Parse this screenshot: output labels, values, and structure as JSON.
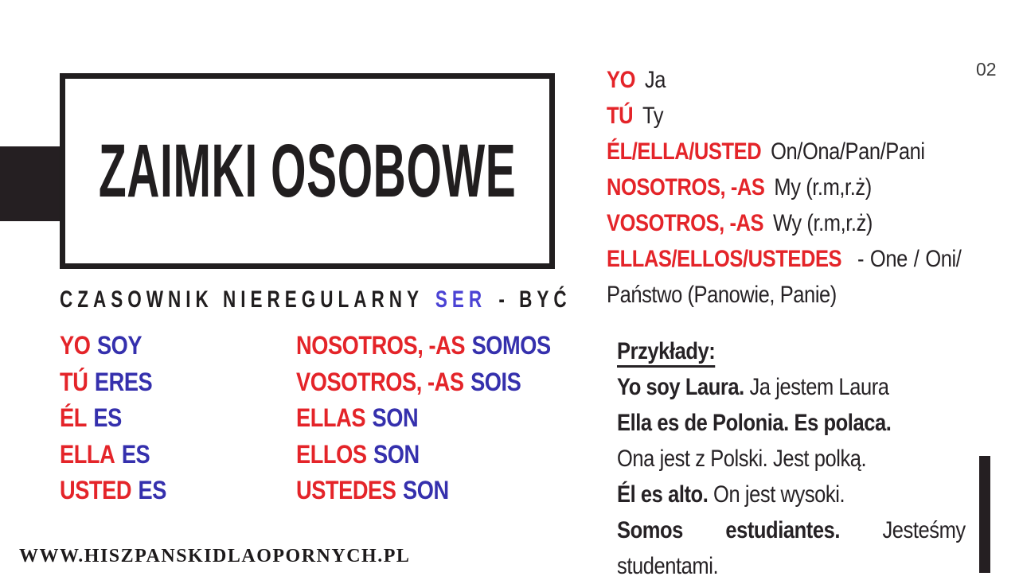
{
  "page_number": "02",
  "title": "ZAIMKI OSOBOWE",
  "subtitle": {
    "prefix": "CZASOWNIK NIEREGULARNY",
    "highlight": "SER",
    "suffix": "- BYĆ"
  },
  "pronoun_translations": [
    {
      "es": "YO",
      "pl": "Ja"
    },
    {
      "es": "TÚ",
      "pl": "Ty"
    },
    {
      "es": "ÉL/ELLA/USTED",
      "pl": "On/Ona/Pan/Pani"
    },
    {
      "es": "NOSOTROS, -AS",
      "pl": "My (r.m,r.ż)"
    },
    {
      "es": "VOSOTROS, -AS",
      "pl": "Wy (r.m,r.ż)"
    },
    {
      "es": "ELLAS/ELLOS/USTEDES",
      "pl": "- One / Oni/ Państwo (Panowie, Panie)"
    }
  ],
  "conjugation": {
    "left": [
      {
        "pronoun": "YO",
        "verb": "SOY"
      },
      {
        "pronoun": "TÚ",
        "verb": "ERES"
      },
      {
        "pronoun": "ÉL",
        "verb": "ES"
      },
      {
        "pronoun": "ELLA",
        "verb": "ES"
      },
      {
        "pronoun": "USTED",
        "verb": "ES"
      }
    ],
    "right": [
      {
        "pronoun": "NOSOTROS, -AS",
        "verb": "SOMOS"
      },
      {
        "pronoun": "VOSOTROS, -AS",
        "verb": "SOIS"
      },
      {
        "pronoun": "ELLAS",
        "verb": "SON"
      },
      {
        "pronoun": "ELLOS",
        "verb": "SON"
      },
      {
        "pronoun": "USTEDES",
        "verb": "SON"
      }
    ]
  },
  "examples": {
    "heading": "Przykłady:",
    "items": [
      {
        "es": "Yo soy Laura.",
        "pl": "Ja jestem Laura"
      },
      {
        "es": "Ella es de Polonia. Es polaca.",
        "pl": "Ona jest z Polski. Jest polką."
      },
      {
        "es": "Él es alto.",
        "pl": "On jest wysoki."
      },
      {
        "es": "Somos estudiantes.",
        "pl": "Jesteśmy studentami."
      }
    ]
  },
  "footer_url": "WWW.HISZPANSKIDLAOPORNYCH.PL",
  "colors": {
    "red": "#e42429",
    "verb_blue": "#3530ad",
    "ser_blue": "#4b43d4",
    "ink": "#211e1f",
    "accent_block": "#251f22"
  }
}
